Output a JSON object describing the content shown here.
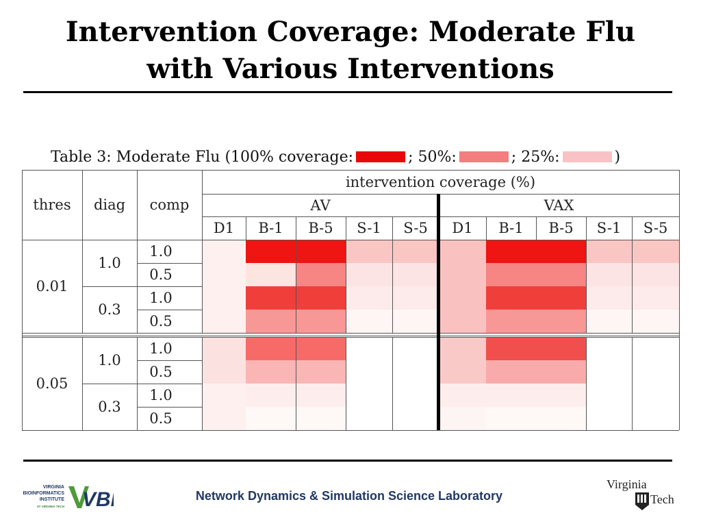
{
  "title_line1": "Intervention Coverage: Moderate Flu",
  "title_line2": "with Various Interventions",
  "caption": {
    "prefix": "Table 3: Moderate Flu (100% coverage:",
    "sep1": "; 50%:",
    "sep2": "; 25%:",
    "suffix": ")"
  },
  "legend_colors": {
    "c100": "#e8080a",
    "c50": "#f47d7f",
    "c25": "#f9c3c5"
  },
  "table": {
    "headers": {
      "thres": "thres",
      "diag": "diag",
      "comp": "comp",
      "group": "intervention coverage (%)",
      "av": "AV",
      "vax": "VAX",
      "subcols": [
        "D1",
        "B-1",
        "B-5",
        "S-1",
        "S-5",
        "D1",
        "B-1",
        "B-5",
        "S-1",
        "S-5"
      ]
    },
    "rows": [
      {
        "thres": "0.01",
        "diag": "1.0",
        "comp": "1.0",
        "colors": [
          "#fdf0ee",
          "#ee1513",
          "#ee1513",
          "#f9c6c4",
          "#f9c6c4",
          "#f9c2c0",
          "#ee1513",
          "#ee1513",
          "#f9c6c4",
          "#f9c6c4"
        ]
      },
      {
        "thres": "0.01",
        "diag": "1.0",
        "comp": "0.5",
        "colors": [
          "#fdf0ee",
          "#fce4e1",
          "#f68583",
          "#fbe4e3",
          "#fbe4e3",
          "#f9c2c0",
          "#f68583",
          "#f68583",
          "#fbe4e3",
          "#fbe4e3"
        ]
      },
      {
        "thres": "0.01",
        "diag": "0.3",
        "comp": "1.0",
        "colors": [
          "#fdf0ee",
          "#f03e3b",
          "#f03e3b",
          "#fcebea",
          "#fcebea",
          "#f9c2c0",
          "#f03e3b",
          "#f03e3b",
          "#fcebea",
          "#fcebea"
        ]
      },
      {
        "thres": "0.01",
        "diag": "0.3",
        "comp": "0.5",
        "colors": [
          "#fdf0ee",
          "#f79896",
          "#f79896",
          "#fdf6f5",
          "#fdf6f5",
          "#f9c2c0",
          "#f79896",
          "#f79896",
          "#fdf6f5",
          "#fdf6f5"
        ]
      },
      {
        "thres": "0.05",
        "diag": "1.0",
        "comp": "1.0",
        "colors": [
          "#fbe1df",
          "#f66a68",
          "#f66a68",
          "#ffffff",
          "#ffffff",
          "#f9c9c8",
          "#f14f4d",
          "#f14f4d",
          "#ffffff",
          "#ffffff"
        ]
      },
      {
        "thres": "0.05",
        "diag": "1.0",
        "comp": "0.5",
        "colors": [
          "#fbe1df",
          "#f9b6b5",
          "#f9b6b5",
          "#ffffff",
          "#ffffff",
          "#f9c9c8",
          "#f8abaa",
          "#f8abaa",
          "#ffffff",
          "#ffffff"
        ]
      },
      {
        "thres": "0.05",
        "diag": "0.3",
        "comp": "1.0",
        "colors": [
          "#fdf0ef",
          "#fdeeed",
          "#fdeeed",
          "#ffffff",
          "#ffffff",
          "#fdeeed",
          "#fdeeed",
          "#fdeeed",
          "#ffffff",
          "#ffffff"
        ]
      },
      {
        "thres": "0.05",
        "diag": "0.3",
        "comp": "0.5",
        "colors": [
          "#fdf0ef",
          "#fef8f7",
          "#fef8f7",
          "#ffffff",
          "#ffffff",
          "#fdf5f4",
          "#fef8f7",
          "#fef8f7",
          "#ffffff",
          "#ffffff"
        ]
      }
    ]
  },
  "footer": {
    "lab": "Network Dynamics & Simulation Science Laboratory",
    "vbi": {
      "line1": "VIRGINIA",
      "line2": "BIOINFORMATICS",
      "line3": "INSTITUTE",
      "line4": "AT VIRGINIA TECH",
      "mark": "VBI"
    },
    "vt": {
      "word1": "Virginia",
      "word2": "Tech"
    }
  },
  "icons": {
    "vbi_logo": "vbi-logo-icon",
    "vt_logo": "virginia-tech-logo-icon"
  }
}
